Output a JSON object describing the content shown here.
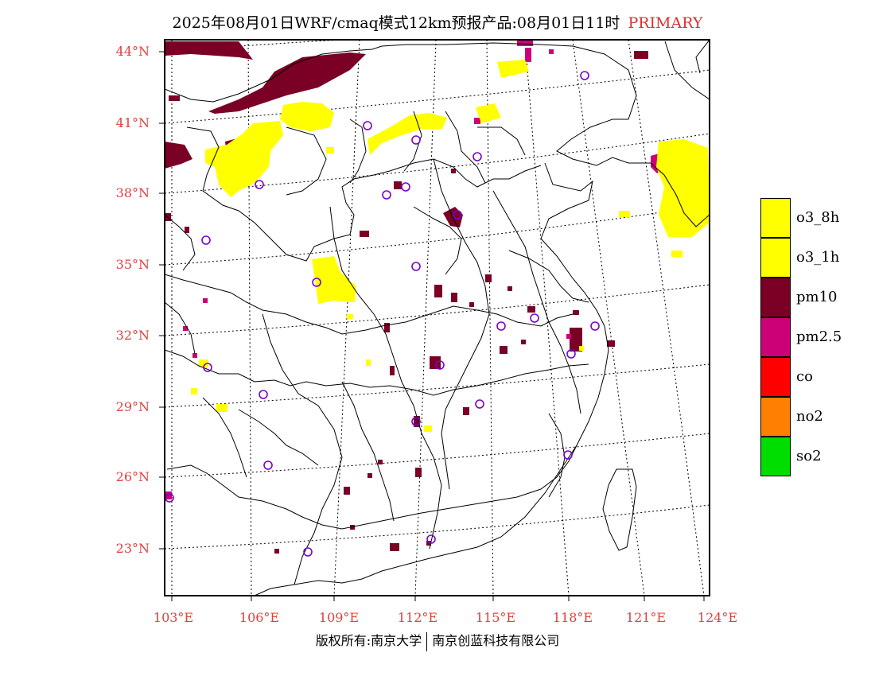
{
  "header": {
    "title": "2025年08月01日WRF/cmaq模式12km预报产品:08月01日11时",
    "tag": "PRIMARY"
  },
  "map": {
    "lon_range": [
      102.7,
      124
    ],
    "lat_range": [
      21,
      44.4
    ],
    "lat_labels": [
      "44°N",
      "41°N",
      "38°N",
      "35°N",
      "32°N",
      "29°N",
      "26°N",
      "23°N"
    ],
    "lon_labels": [
      "103°E",
      "106°E",
      "109°E",
      "112°E",
      "115°E",
      "118°E",
      "121°E",
      "124°E"
    ],
    "lat_values": [
      44,
      41,
      38,
      35,
      32,
      29,
      26,
      23
    ],
    "lon_values": [
      103,
      106,
      109,
      112,
      115,
      118,
      121,
      124
    ]
  },
  "legend": {
    "items": [
      {
        "label": "o3_8h",
        "color": "#ffff00"
      },
      {
        "label": "o3_1h",
        "color": "#ffff00"
      },
      {
        "label": "pm10",
        "color": "#7a0026"
      },
      {
        "label": "pm2.5",
        "color": "#cc0077"
      },
      {
        "label": "co",
        "color": "#ff0000"
      },
      {
        "label": "no2",
        "color": "#ff8000"
      },
      {
        "label": "so2",
        "color": "#00dd00"
      }
    ]
  },
  "footer": {
    "left": "版权所有:南京大学",
    "right": "南京创蓝科技有限公司"
  },
  "colors": {
    "label": "#e04040",
    "station": "#7a00cc",
    "o3": "#ffff00",
    "pm10": "#7a0026",
    "pm25": "#cc0077"
  }
}
